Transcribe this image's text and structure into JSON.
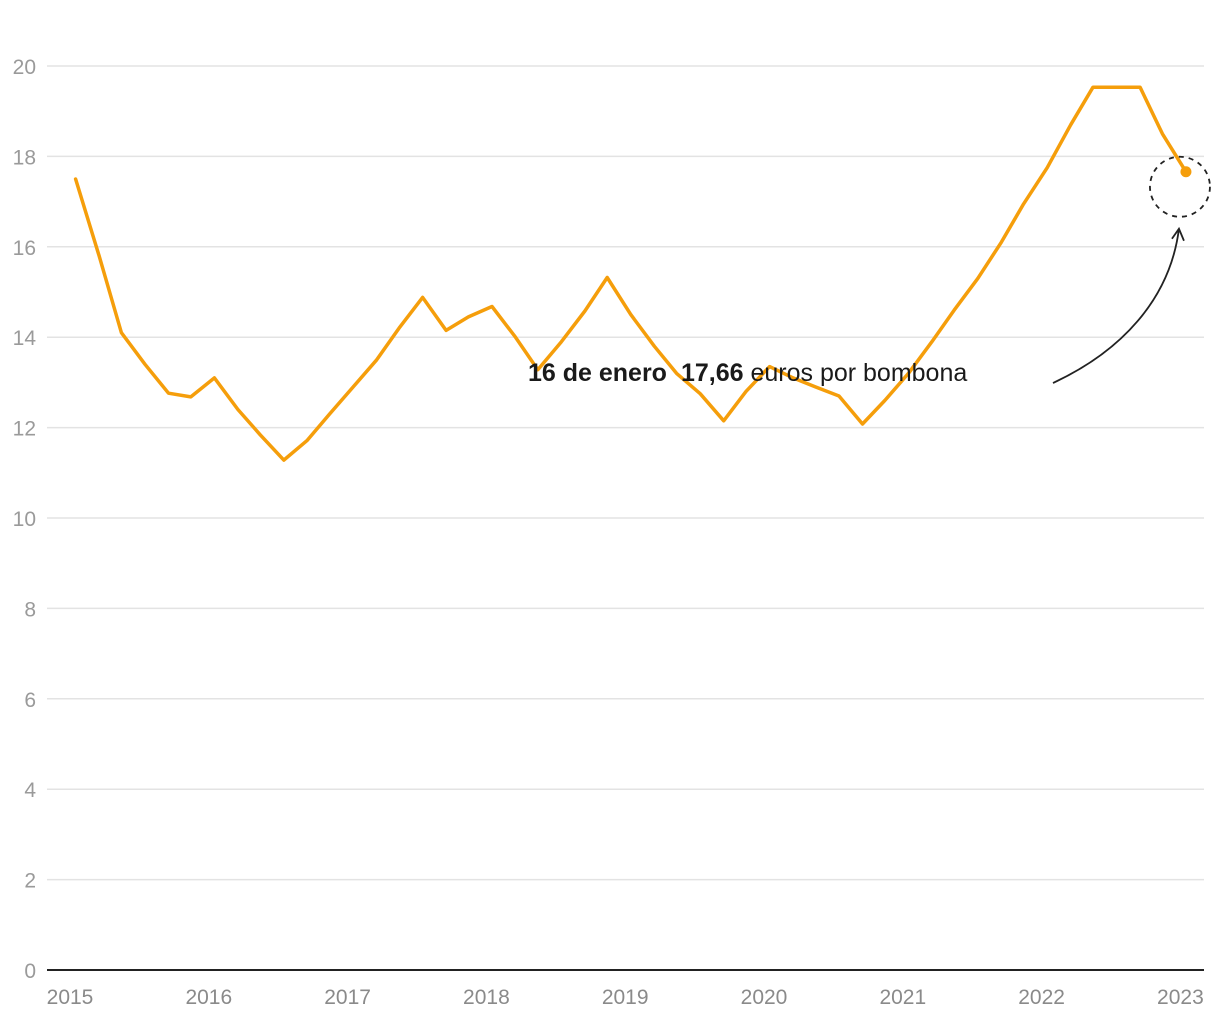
{
  "chart_data": {
    "type": "line",
    "title": "",
    "xlabel": "",
    "ylabel": "",
    "xlim": [
      2015,
      2023.1
    ],
    "ylim": [
      0,
      20
    ],
    "y_ticks": [
      0,
      2,
      4,
      6,
      8,
      10,
      12,
      14,
      16,
      18,
      20
    ],
    "x_ticks": [
      "2015",
      "2016",
      "2017",
      "2018",
      "2019",
      "2020",
      "2021",
      "2022",
      "2023"
    ],
    "grid": true,
    "line_color": "#f59e0b",
    "series": [
      {
        "x": [
          2015.04,
          2015.21,
          2015.37,
          2015.54,
          2015.71,
          2015.87,
          2016.04,
          2016.21,
          2016.37,
          2016.54,
          2016.71,
          2016.87,
          2017.04,
          2017.21,
          2017.37,
          2017.54,
          2017.71,
          2017.87,
          2018.04,
          2018.21,
          2018.37,
          2018.54,
          2018.71,
          2018.87,
          2019.04,
          2019.21,
          2019.37,
          2019.54,
          2019.71,
          2019.87,
          2020.04,
          2020.21,
          2020.37,
          2020.54,
          2020.71,
          2020.87,
          2021.04,
          2021.21,
          2021.37,
          2021.54,
          2021.71,
          2021.87,
          2022.04,
          2022.21,
          2022.37,
          2022.54,
          2022.71,
          2022.87,
          2023.04
        ],
        "y": [
          17.5,
          15.8,
          14.1,
          13.4,
          12.76,
          12.68,
          13.1,
          12.4,
          11.84,
          11.28,
          11.72,
          12.3,
          12.9,
          13.5,
          14.2,
          14.88,
          14.15,
          14.45,
          14.68,
          14.0,
          13.28,
          13.9,
          14.58,
          15.32,
          14.5,
          13.8,
          13.2,
          12.75,
          12.15,
          12.8,
          13.35,
          13.1,
          12.9,
          12.7,
          12.08,
          12.6,
          13.2,
          13.9,
          14.6,
          15.3,
          16.1,
          16.95,
          17.75,
          18.7,
          19.53,
          19.53,
          19.53,
          18.5,
          17.66
        ]
      }
    ],
    "highlight_point": {
      "x": 2023.04,
      "y": 17.66
    },
    "annotation": {
      "date": "16 de enero",
      "value": "17,66",
      "text": " euros por bombona"
    }
  }
}
